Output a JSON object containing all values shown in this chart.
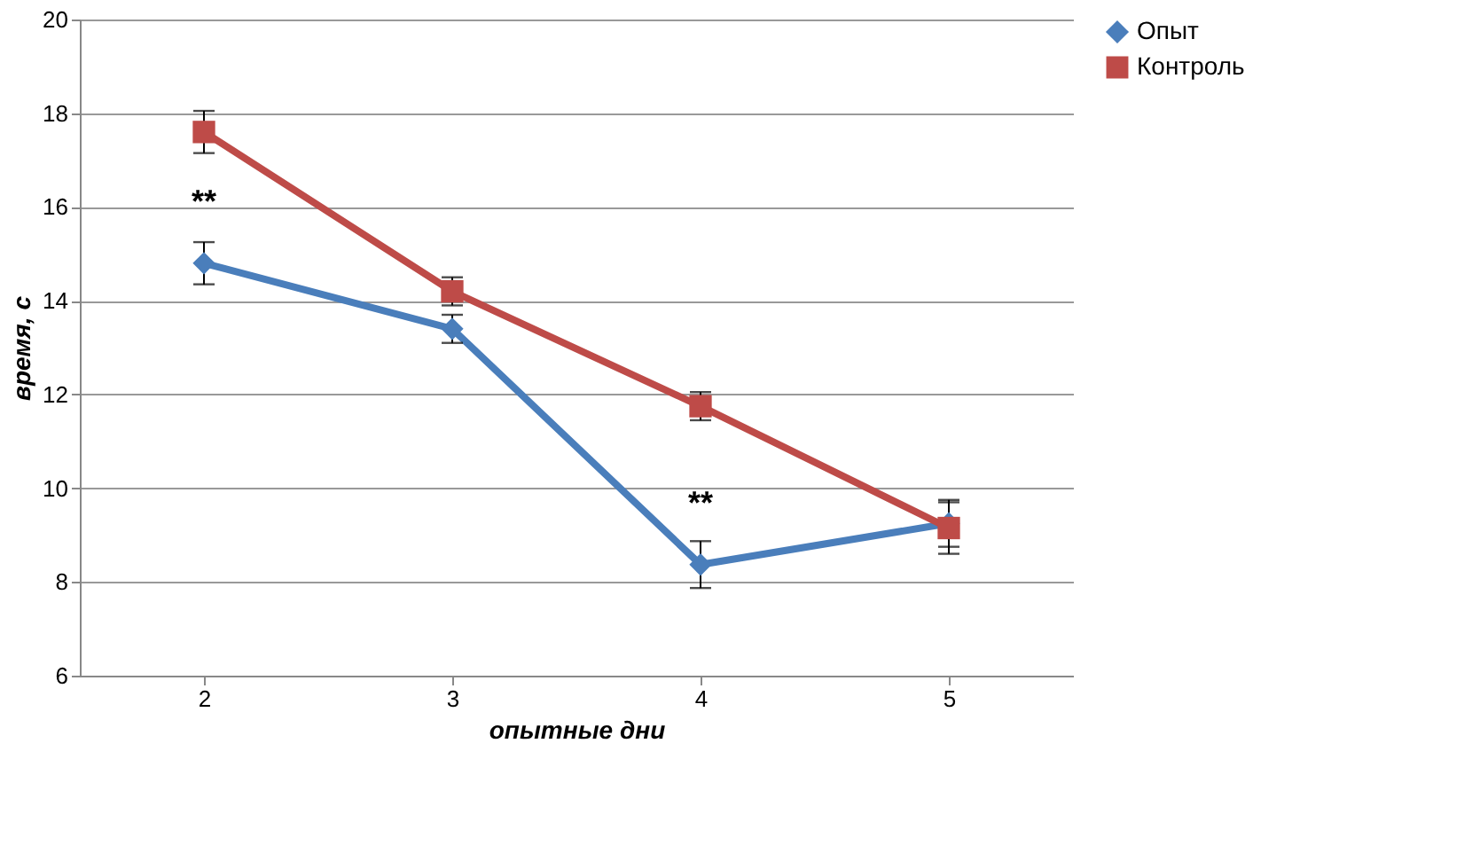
{
  "chart_data": {
    "type": "line",
    "xlabel": "опытные дни",
    "ylabel": "время, с",
    "categories": [
      "2",
      "3",
      "4",
      "5"
    ],
    "series": [
      {
        "name": "Опыт",
        "color": "#4a7ebb",
        "marker": "diamond",
        "values": [
          14.8,
          13.4,
          8.37,
          9.25
        ],
        "errors": [
          0.45,
          0.3,
          0.5,
          0.5
        ]
      },
      {
        "name": "Контроль",
        "color": "#be4b48",
        "marker": "square",
        "values": [
          17.6,
          14.2,
          11.75,
          9.15
        ],
        "errors": [
          0.45,
          0.3,
          0.3,
          0.55
        ]
      }
    ],
    "ylim": [
      6,
      20
    ],
    "yticks": [
      6,
      8,
      10,
      12,
      14,
      16,
      18,
      20
    ],
    "grid": "y",
    "legend": "right",
    "line_style": "solid",
    "annotations": [
      {
        "text": "**",
        "x": "2",
        "y": 14.8
      },
      {
        "text": "**",
        "x": "4",
        "y": 8.37
      }
    ]
  }
}
